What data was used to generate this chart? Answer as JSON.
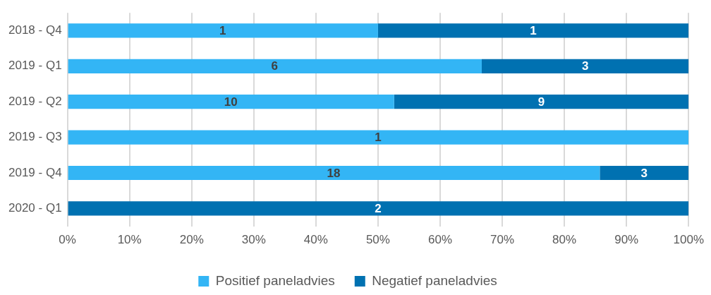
{
  "chart_data": {
    "type": "bar",
    "orientation": "horizontal",
    "stacked": true,
    "categories": [
      "2018 - Q4",
      "2019 - Q1",
      "2019 - Q2",
      "2019 - Q3",
      "2019 - Q4",
      "2020 - Q1"
    ],
    "series": [
      {
        "name": "Positief paneladvies",
        "color": "#33b5f5",
        "values": [
          50,
          66.7,
          52.6,
          100,
          85.7,
          0
        ]
      },
      {
        "name": "Negatief paneladvies",
        "color": "#0071b1",
        "values": [
          50,
          33.3,
          47.4,
          0,
          14.3,
          100
        ]
      }
    ],
    "annotations": [
      "1",
      "1",
      "6",
      "3",
      "10",
      "9",
      "1",
      "18",
      "3",
      "2"
    ],
    "xlim": [
      0,
      100
    ],
    "xticks": [
      {
        "value": 0,
        "label": "0%"
      },
      {
        "value": 10,
        "label": "10%"
      },
      {
        "value": 20,
        "label": "20%"
      },
      {
        "value": 30,
        "label": "30%"
      },
      {
        "value": 40,
        "label": "40%"
      },
      {
        "value": 50,
        "label": "50%"
      },
      {
        "value": 60,
        "label": "60%"
      },
      {
        "value": 70,
        "label": "70%"
      },
      {
        "value": 80,
        "label": "80%"
      },
      {
        "value": 90,
        "label": "90%"
      },
      {
        "value": 100,
        "label": "100%"
      }
    ],
    "grid": "x",
    "legend": "bottom"
  }
}
